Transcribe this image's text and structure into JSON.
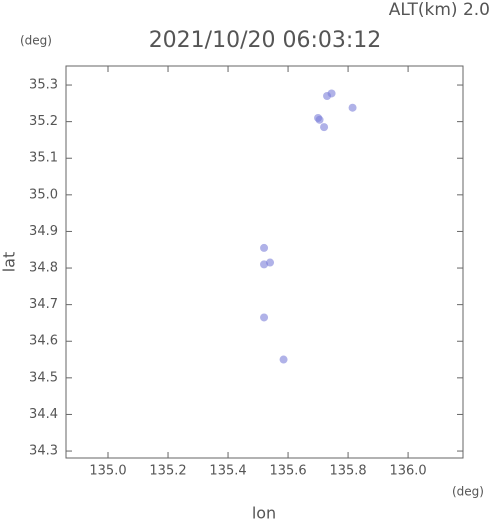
{
  "chart_data": {
    "type": "scatter",
    "title": "2021/10/20 06:03:12",
    "subtitle": "ALT(km) 2.0",
    "y_unit": "(deg)",
    "x_unit": "(deg)",
    "x_label": "lon",
    "y_label": "lat",
    "xlim": [
      134.86,
      136.183
    ],
    "ylim": [
      34.281,
      35.352
    ],
    "xticks": [
      {
        "value": 135,
        "label": "135.0"
      },
      135.2,
      135.4,
      135.6,
      135.8,
      {
        "value": 136,
        "label": "136.0"
      }
    ],
    "yticks": [
      34.3,
      34.4,
      34.5,
      34.6,
      34.7,
      34.8,
      34.9,
      {
        "value": 35,
        "label": "35.0"
      },
      35.1,
      35.2,
      35.3
    ],
    "series": [
      {
        "color": "#7b7fd8",
        "x": [
          135.745,
          135.73,
          135.705,
          135.72,
          135.7,
          135.815,
          135.52,
          135.54,
          135.52,
          135.52,
          135.585
        ],
        "values": [
          35.277,
          35.27,
          35.205,
          35.185,
          35.21,
          35.238,
          34.81,
          34.815,
          34.855,
          34.665,
          34.55
        ]
      }
    ]
  }
}
